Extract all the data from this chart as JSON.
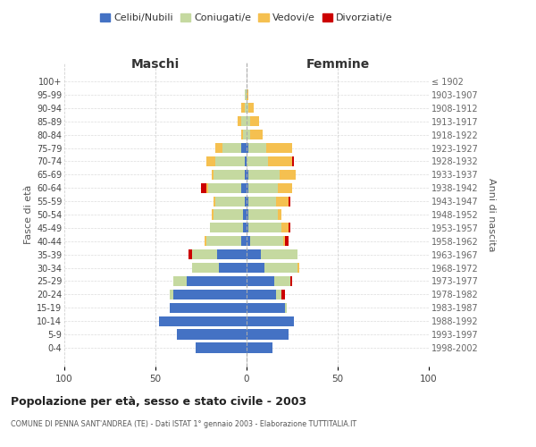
{
  "age_groups": [
    "100+",
    "95-99",
    "90-94",
    "85-89",
    "80-84",
    "75-79",
    "70-74",
    "65-69",
    "60-64",
    "55-59",
    "50-54",
    "45-49",
    "40-44",
    "35-39",
    "30-34",
    "25-29",
    "20-24",
    "15-19",
    "10-14",
    "5-9",
    "0-4"
  ],
  "birth_years": [
    "≤ 1902",
    "1903-1907",
    "1908-1912",
    "1913-1917",
    "1918-1922",
    "1923-1927",
    "1928-1932",
    "1933-1937",
    "1938-1942",
    "1943-1947",
    "1948-1952",
    "1953-1957",
    "1958-1962",
    "1963-1967",
    "1968-1972",
    "1973-1977",
    "1978-1982",
    "1983-1987",
    "1988-1992",
    "1993-1997",
    "1998-2002"
  ],
  "maschi": {
    "celibi": [
      0,
      0,
      0,
      0,
      0,
      3,
      1,
      1,
      3,
      1,
      2,
      2,
      3,
      16,
      15,
      33,
      40,
      42,
      48,
      38,
      28
    ],
    "coniugati": [
      0,
      1,
      1,
      3,
      2,
      10,
      16,
      17,
      18,
      16,
      16,
      18,
      19,
      14,
      15,
      7,
      2,
      0,
      0,
      0,
      0
    ],
    "vedovi": [
      0,
      0,
      2,
      2,
      1,
      4,
      5,
      1,
      1,
      1,
      1,
      0,
      1,
      0,
      0,
      0,
      0,
      0,
      0,
      0,
      0
    ],
    "divorziati": [
      0,
      0,
      0,
      0,
      0,
      0,
      0,
      0,
      3,
      0,
      0,
      0,
      0,
      2,
      0,
      0,
      0,
      0,
      0,
      0,
      0
    ]
  },
  "femmine": {
    "nubili": [
      0,
      0,
      0,
      0,
      0,
      1,
      0,
      1,
      1,
      1,
      1,
      1,
      2,
      8,
      10,
      15,
      16,
      21,
      26,
      23,
      14
    ],
    "coniugate": [
      0,
      0,
      1,
      2,
      2,
      10,
      12,
      17,
      16,
      15,
      16,
      18,
      18,
      20,
      18,
      9,
      3,
      1,
      0,
      0,
      0
    ],
    "vedove": [
      0,
      1,
      3,
      5,
      7,
      14,
      13,
      9,
      8,
      7,
      2,
      4,
      1,
      0,
      1,
      0,
      0,
      0,
      0,
      0,
      0
    ],
    "divorziate": [
      0,
      0,
      0,
      0,
      0,
      0,
      1,
      0,
      0,
      1,
      0,
      1,
      2,
      0,
      0,
      1,
      2,
      0,
      0,
      0,
      0
    ]
  },
  "colors": {
    "celibi": "#4472C4",
    "coniugati": "#C5D9A0",
    "vedovi": "#F5C050",
    "divorziati": "#CC0000"
  },
  "title": "Popolazione per età, sesso e stato civile - 2003",
  "subtitle": "COMUNE DI PENNA SANT'ANDREA (TE) - Dati ISTAT 1° gennaio 2003 - Elaborazione TUTTITALIA.IT",
  "xlabel_left": "Maschi",
  "xlabel_right": "Femmine",
  "ylabel_left": "Fasce di età",
  "ylabel_right": "Anni di nascita",
  "legend_labels": [
    "Celibi/Nubili",
    "Coniugati/e",
    "Vedovi/e",
    "Divorziati/e"
  ],
  "xlim": 100,
  "background_color": "#ffffff",
  "grid_color": "#cccccc"
}
